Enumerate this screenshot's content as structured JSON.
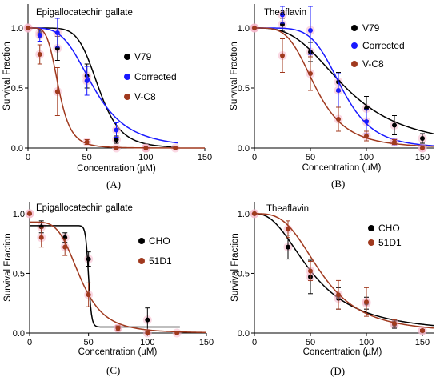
{
  "figure": {
    "background": "#ffffff"
  },
  "chart_data": [
    {
      "id": "A",
      "type": "scatter",
      "title": "Epigallocatechin gallate",
      "caption": "(A)",
      "xlabel": "Concentration (µM)",
      "ylabel": "Survival Fraction",
      "xlim": [
        0,
        150
      ],
      "ylim": [
        0,
        1.2
      ],
      "x_ticks": [
        0,
        50,
        100,
        150
      ],
      "x_tick_labels": [
        "0",
        "50",
        "100",
        "150"
      ],
      "y_ticks": [
        0,
        0.5,
        1.0
      ],
      "y_tick_labels": [
        "0.0",
        "0.5",
        "1.0"
      ],
      "legend_position": "right",
      "series": [
        {
          "name": "V79",
          "color": "#000000",
          "points": [
            {
              "x": 0,
              "y": 1.0,
              "err": 0
            },
            {
              "x": 10,
              "y": 0.96,
              "err": 0.04
            },
            {
              "x": 25,
              "y": 0.83,
              "err": 0.1
            },
            {
              "x": 50,
              "y": 0.6,
              "err": 0.1
            },
            {
              "x": 75,
              "y": 0.07,
              "err": 0.03
            },
            {
              "x": 100,
              "y": 0.0,
              "err": 0
            }
          ],
          "curve": {
            "ic50": 60,
            "hill": 6.5,
            "top": 1.0,
            "bottom": 0.0
          }
        },
        {
          "name": "Corrected",
          "color": "#1a1aff",
          "points": [
            {
              "x": 0,
              "y": 1.0,
              "err": 0
            },
            {
              "x": 10,
              "y": 0.94,
              "err": 0.05
            },
            {
              "x": 25,
              "y": 0.96,
              "err": 0.12
            },
            {
              "x": 50,
              "y": 0.56,
              "err": 0.12
            },
            {
              "x": 75,
              "y": 0.15,
              "err": 0.06
            },
            {
              "x": 100,
              "y": 0.0,
              "err": 0
            }
          ],
          "curve": {
            "ic50": 56,
            "hill": 3.8,
            "top": 1.0,
            "bottom": 0.0
          }
        },
        {
          "name": "V-C8",
          "color": "#a0391e",
          "points": [
            {
              "x": 0,
              "y": 1.0,
              "err": 0
            },
            {
              "x": 10,
              "y": 0.78,
              "err": 0.08
            },
            {
              "x": 25,
              "y": 0.47,
              "err": 0.2
            },
            {
              "x": 50,
              "y": 0.05,
              "err": 0.02
            },
            {
              "x": 75,
              "y": 0.0,
              "err": 0
            },
            {
              "x": 100,
              "y": 0.0,
              "err": 0
            },
            {
              "x": 125,
              "y": 0.0,
              "err": 0
            }
          ],
          "curve": {
            "ic50": 26,
            "hill": 5,
            "top": 1.0,
            "bottom": 0.0
          }
        }
      ]
    },
    {
      "id": "B",
      "type": "scatter",
      "title": "Theaflavin",
      "caption": "(B)",
      "xlabel": "Concentration (µM)",
      "ylabel": "Survival Fraction",
      "xlim": [
        0,
        160
      ],
      "ylim": [
        0,
        1.2
      ],
      "x_ticks": [
        0,
        50,
        100,
        150
      ],
      "x_tick_labels": [
        "0",
        "50",
        "100",
        "150"
      ],
      "y_ticks": [
        0,
        0.5,
        1.0
      ],
      "y_tick_labels": [
        "0.0",
        "0.5",
        "1.0"
      ],
      "legend_position": "right",
      "series": [
        {
          "name": "V79",
          "color": "#000000",
          "points": [
            {
              "x": 0,
              "y": 1.0,
              "err": 0
            },
            {
              "x": 25,
              "y": 1.03,
              "err": 0.05
            },
            {
              "x": 50,
              "y": 0.8,
              "err": 0.08
            },
            {
              "x": 75,
              "y": 0.55,
              "err": 0.08
            },
            {
              "x": 100,
              "y": 0.33,
              "err": 0.1
            },
            {
              "x": 125,
              "y": 0.19,
              "err": 0.08
            },
            {
              "x": 150,
              "y": 0.08,
              "err": 0.04
            }
          ],
          "curve": {
            "ic50": 82,
            "hill": 3,
            "top": 1.0,
            "bottom": 0.0
          }
        },
        {
          "name": "Corrected",
          "color": "#1a1aff",
          "points": [
            {
              "x": 0,
              "y": 1.0,
              "err": 0
            },
            {
              "x": 25,
              "y": 1.11,
              "err": 0.07
            },
            {
              "x": 50,
              "y": 0.98,
              "err": 0.2
            },
            {
              "x": 75,
              "y": 0.48,
              "err": 0.14
            },
            {
              "x": 100,
              "y": 0.22,
              "err": 0.1
            },
            {
              "x": 125,
              "y": 0.05,
              "err": 0.03
            },
            {
              "x": 150,
              "y": 0.0,
              "err": 0
            }
          ],
          "curve": {
            "ic50": 78,
            "hill": 5.5,
            "top": 1.0,
            "bottom": 0.0
          }
        },
        {
          "name": "V-C8",
          "color": "#a0391e",
          "points": [
            {
              "x": 0,
              "y": 1.0,
              "err": 0
            },
            {
              "x": 25,
              "y": 0.77,
              "err": 0.14
            },
            {
              "x": 50,
              "y": 0.62,
              "err": 0.14
            },
            {
              "x": 75,
              "y": 0.24,
              "err": 0.1
            },
            {
              "x": 100,
              "y": 0.1,
              "err": 0.04
            },
            {
              "x": 125,
              "y": 0.05,
              "err": 0.02
            },
            {
              "x": 150,
              "y": 0.0,
              "err": 0
            }
          ],
          "curve": {
            "ic50": 55,
            "hill": 4,
            "top": 1.0,
            "bottom": 0.0
          }
        }
      ]
    },
    {
      "id": "C",
      "type": "scatter",
      "title": "Epigallocatechin gallate",
      "caption": "(C)",
      "xlabel": "Concentration (µM)",
      "ylabel": "Survival Fraction",
      "xlim": [
        0,
        150
      ],
      "ylim": [
        0,
        1.1
      ],
      "x_ticks": [
        0,
        50,
        100,
        150
      ],
      "x_tick_labels": [
        "0",
        "50",
        "100",
        "150"
      ],
      "y_ticks": [
        0,
        0.5,
        1.0
      ],
      "y_tick_labels": [
        "0.0",
        "0.5",
        "1.0"
      ],
      "legend_position": "right",
      "series": [
        {
          "name": "CHO",
          "color": "#000000",
          "points": [
            {
              "x": 0,
              "y": 1.0,
              "err": 0
            },
            {
              "x": 10,
              "y": 0.89,
              "err": 0.05
            },
            {
              "x": 30,
              "y": 0.8,
              "err": 0.04
            },
            {
              "x": 50,
              "y": 0.62,
              "err": 0.06
            },
            {
              "x": 75,
              "y": 0.04,
              "err": 0.02
            },
            {
              "x": 100,
              "y": 0.11,
              "err": 0.1
            }
          ],
          "curve": {
            "ic50": 50,
            "hill": 40,
            "top": 0.9,
            "bottom": 0.05
          }
        },
        {
          "name": "51D1",
          "color": "#a0391e",
          "points": [
            {
              "x": 0,
              "y": 1.0,
              "err": 0
            },
            {
              "x": 10,
              "y": 0.8,
              "err": 0.08
            },
            {
              "x": 30,
              "y": 0.72,
              "err": 0.07
            },
            {
              "x": 50,
              "y": 0.32,
              "err": 0.1
            },
            {
              "x": 75,
              "y": 0.04,
              "err": 0.02
            },
            {
              "x": 100,
              "y": 0.0,
              "err": 0
            },
            {
              "x": 125,
              "y": 0.0,
              "err": 0
            }
          ],
          "curve": {
            "ic50": 43,
            "hill": 4.2,
            "top": 0.93,
            "bottom": 0.0
          }
        }
      ]
    },
    {
      "id": "D",
      "type": "scatter",
      "title": "Theaflavin",
      "caption": "(D)",
      "xlabel": "Concentration (µM)",
      "ylabel": "Survival Fraction",
      "xlim": [
        0,
        160
      ],
      "ylim": [
        0,
        1.1
      ],
      "x_ticks": [
        0,
        50,
        100,
        150
      ],
      "x_tick_labels": [
        "0",
        "50",
        "100",
        "150"
      ],
      "y_ticks": [
        0,
        0.5,
        1.0
      ],
      "y_tick_labels": [
        "0.0",
        "0.5",
        "1.0"
      ],
      "legend_position": "right",
      "series": [
        {
          "name": "CHO",
          "color": "#000000",
          "points": [
            {
              "x": 0,
              "y": 1.0,
              "err": 0
            },
            {
              "x": 30,
              "y": 0.72,
              "err": 0.1
            },
            {
              "x": 50,
              "y": 0.47,
              "err": 0.14
            },
            {
              "x": 75,
              "y": 0.29,
              "err": 0.09
            },
            {
              "x": 100,
              "y": 0.25,
              "err": 0.05
            },
            {
              "x": 125,
              "y": 0.07,
              "err": 0.03
            },
            {
              "x": 150,
              "y": 0.02,
              "err": 0.01
            }
          ],
          "curve": {
            "ic50": 52,
            "hill": 2.4,
            "top": 1.0,
            "bottom": 0.0
          }
        },
        {
          "name": "51D1",
          "color": "#a0391e",
          "points": [
            {
              "x": 0,
              "y": 1.0,
              "err": 0
            },
            {
              "x": 30,
              "y": 0.87,
              "err": 0.07
            },
            {
              "x": 50,
              "y": 0.52,
              "err": 0.08
            },
            {
              "x": 75,
              "y": 0.32,
              "err": 0.12
            },
            {
              "x": 100,
              "y": 0.26,
              "err": 0.12
            },
            {
              "x": 125,
              "y": 0.08,
              "err": 0.03
            },
            {
              "x": 150,
              "y": 0.02,
              "err": 0.01
            }
          ],
          "curve": {
            "ic50": 60,
            "hill": 3.2,
            "top": 1.0,
            "bottom": 0.0
          }
        }
      ]
    }
  ]
}
